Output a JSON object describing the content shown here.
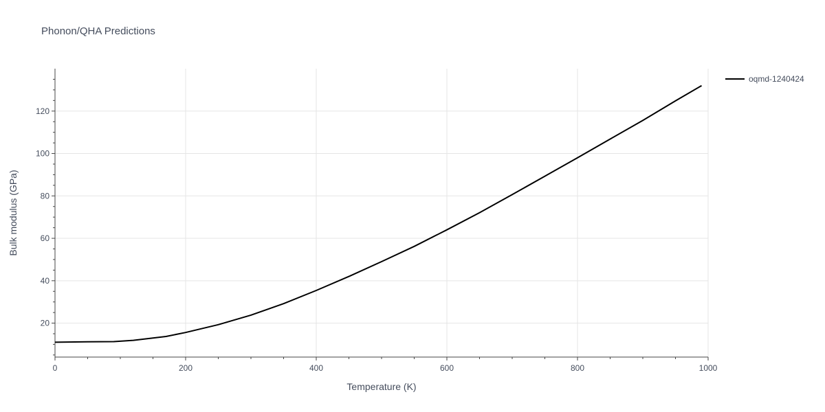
{
  "chart_data": {
    "type": "line",
    "title": "Phonon/QHA Predictions",
    "xlabel": "Temperature (K)",
    "ylabel": "Bulk modulus (GPa)",
    "xlim": [
      0,
      1000
    ],
    "ylim": [
      4,
      140
    ],
    "x_ticks": [
      0,
      200,
      400,
      600,
      800,
      1000
    ],
    "y_ticks": [
      20,
      40,
      60,
      80,
      100,
      120
    ],
    "grid": true,
    "legend_position": "top-right",
    "series": [
      {
        "name": "oqmd-1240424",
        "color": "#000000",
        "x": [
          0,
          50,
          90,
          120,
          170,
          200,
          250,
          300,
          350,
          400,
          450,
          500,
          550,
          600,
          650,
          700,
          750,
          800,
          850,
          900,
          950,
          990
        ],
        "y": [
          11.0,
          11.2,
          11.3,
          11.9,
          13.7,
          15.6,
          19.3,
          23.8,
          29.2,
          35.4,
          42.0,
          49.0,
          56.2,
          64.0,
          72.1,
          80.6,
          89.3,
          98.0,
          106.8,
          115.6,
          124.8,
          132.0
        ]
      }
    ]
  }
}
